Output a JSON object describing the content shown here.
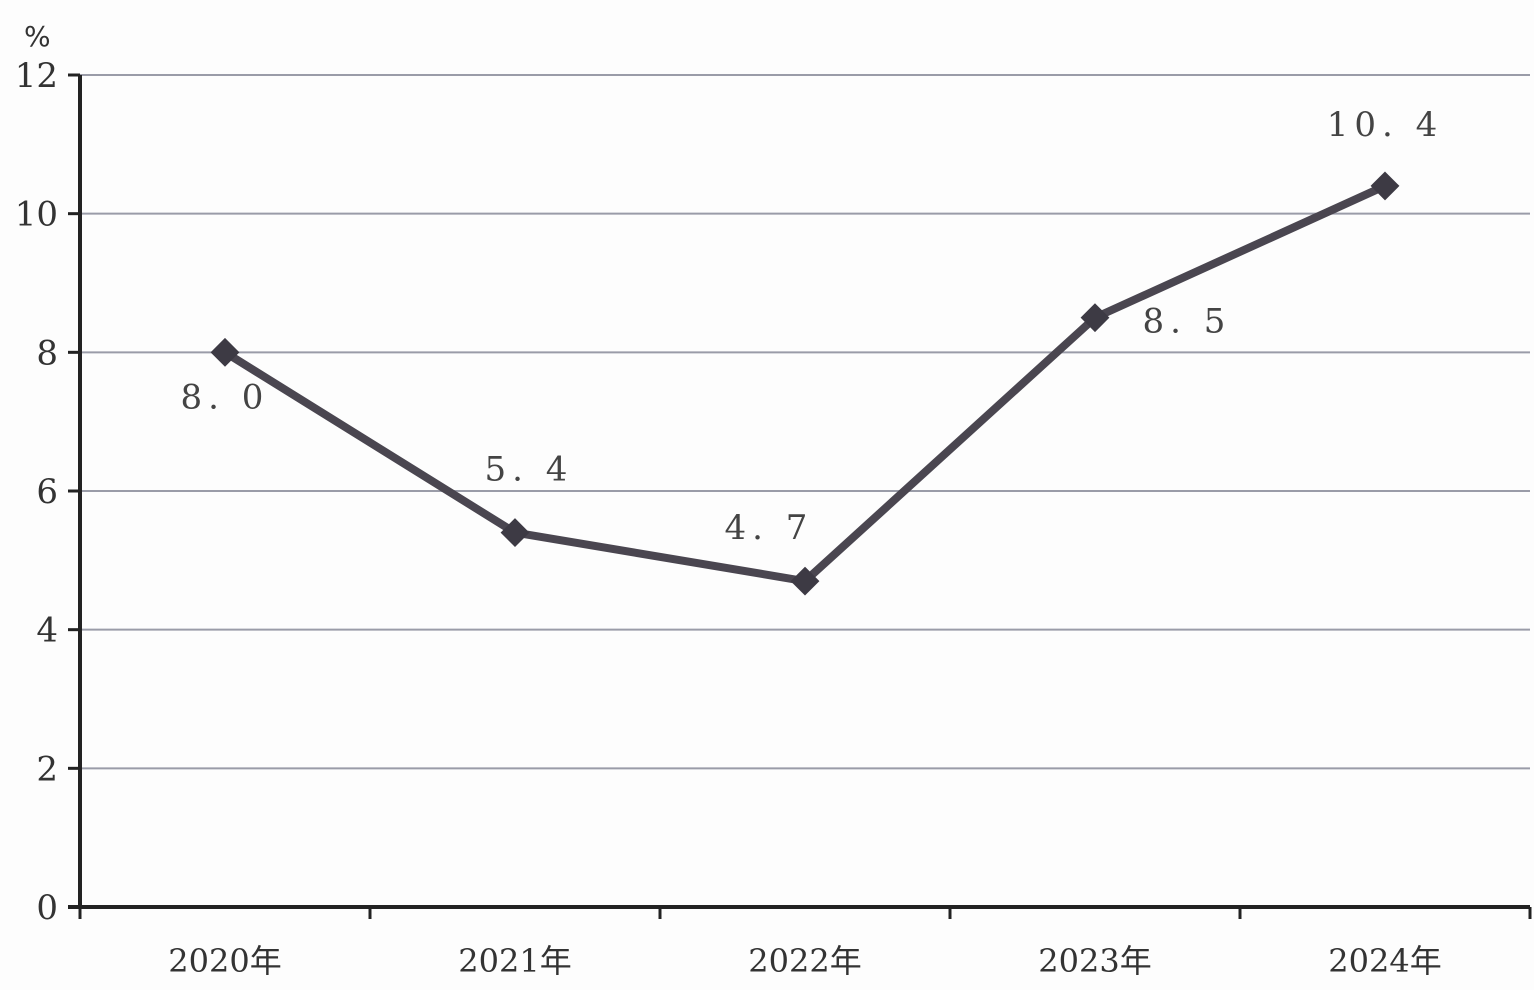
{
  "chart_data": {
    "type": "line",
    "ylabel": "%",
    "ylim": [
      0,
      12
    ],
    "yticks": [
      "0",
      "2",
      "4",
      "6",
      "8",
      "10",
      "12"
    ],
    "categories": [
      "2020年",
      "2021年",
      "2022年",
      "2023年",
      "2024年"
    ],
    "series": [
      {
        "values": [
          8.0,
          5.4,
          4.7,
          8.5,
          10.4
        ],
        "data_labels": [
          "8. 0",
          "5. 4",
          "4. 7",
          "8. 5",
          "10. 4"
        ]
      }
    ],
    "grid": true,
    "line_color": "#4a4650",
    "grid_color": "#9a9ca8"
  }
}
